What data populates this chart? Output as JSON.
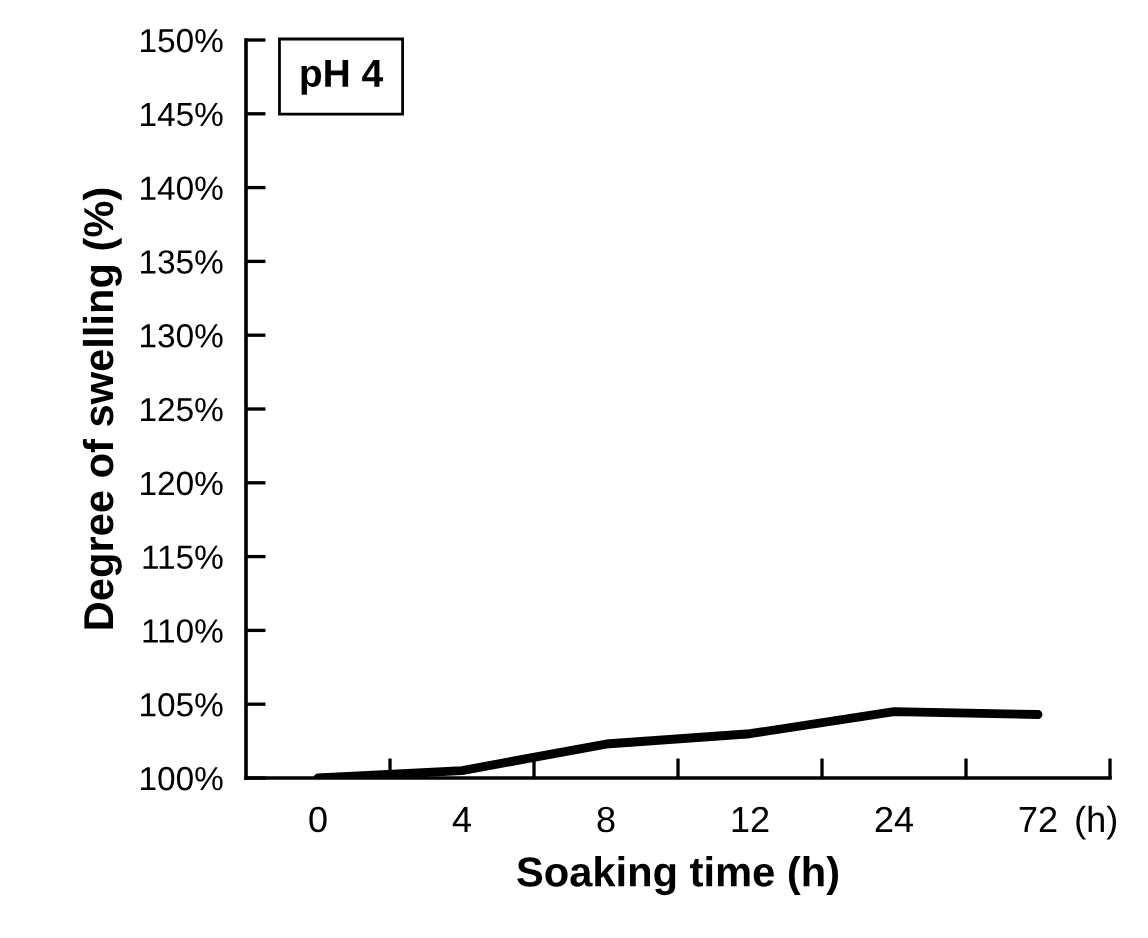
{
  "chart_data": {
    "type": "line",
    "title": "pH 4",
    "xlabel": "Soaking time (h)",
    "ylabel": "Degree of swelling (%)",
    "categories": [
      "0",
      "4",
      "8",
      "12",
      "24",
      "72"
    ],
    "series": [
      {
        "color": "#000000",
        "values": [
          100,
          100.5,
          102.3,
          103,
          104.5,
          104.3
        ]
      }
    ],
    "ylim": [
      100,
      150
    ],
    "yticks": [
      {
        "value": 100,
        "label": "100%"
      },
      {
        "value": 105,
        "label": "105%"
      },
      {
        "value": 110,
        "label": "110%"
      },
      {
        "value": 115,
        "label": "115%"
      },
      {
        "value": 120,
        "label": "120%"
      },
      {
        "value": 125,
        "label": "125%"
      },
      {
        "value": 130,
        "label": "130%"
      },
      {
        "value": 135,
        "label": "135%"
      },
      {
        "value": 140,
        "label": "140%"
      },
      {
        "value": 145,
        "label": "145%"
      },
      {
        "value": 150,
        "label": "150%"
      }
    ],
    "annotations": [
      "(h)"
    ],
    "grid": false,
    "legend": false,
    "marker": "none",
    "line_style": "solid"
  }
}
